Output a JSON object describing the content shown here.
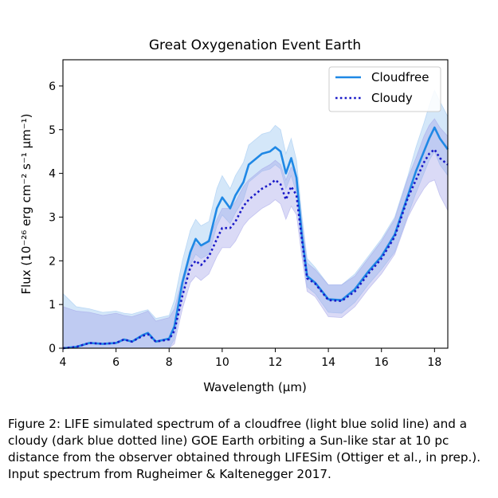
{
  "chart_data": {
    "type": "line",
    "title": "Great Oxygenation Event Earth",
    "xlabel": "Wavelength (μm)",
    "ylabel": "Flux (10⁻²⁶ erg cm⁻² s⁻¹ μm⁻¹)",
    "xlim": [
      4,
      18.5
    ],
    "ylim": [
      0,
      6.6
    ],
    "xticks": [
      4,
      6,
      8,
      10,
      12,
      14,
      16,
      18
    ],
    "yticks": [
      0,
      1,
      2,
      3,
      4,
      5,
      6
    ],
    "grid": false,
    "legend_position": "upper-right",
    "x": [
      4.0,
      4.5,
      5.0,
      5.5,
      6.0,
      6.3,
      6.6,
      7.0,
      7.2,
      7.5,
      8.0,
      8.2,
      8.5,
      8.8,
      9.0,
      9.2,
      9.5,
      9.8,
      10.0,
      10.3,
      10.5,
      10.8,
      11.0,
      11.3,
      11.5,
      11.8,
      12.0,
      12.2,
      12.4,
      12.6,
      12.8,
      13.0,
      13.2,
      13.5,
      14.0,
      14.5,
      15.0,
      15.5,
      16.0,
      16.5,
      17.0,
      17.3,
      17.6,
      17.8,
      18.0,
      18.2,
      18.5
    ],
    "series": [
      {
        "name": "Cloudfree",
        "color": "#1f88e5",
        "style": "solid",
        "values": [
          0.0,
          0.03,
          0.12,
          0.1,
          0.12,
          0.2,
          0.15,
          0.3,
          0.35,
          0.15,
          0.22,
          0.5,
          1.5,
          2.2,
          2.5,
          2.35,
          2.45,
          3.2,
          3.45,
          3.2,
          3.5,
          3.8,
          4.2,
          4.35,
          4.45,
          4.5,
          4.6,
          4.5,
          4.0,
          4.35,
          3.9,
          2.6,
          1.65,
          1.5,
          1.12,
          1.1,
          1.35,
          1.75,
          2.1,
          2.6,
          3.5,
          4.05,
          4.5,
          4.8,
          5.05,
          4.8,
          4.55
        ]
      },
      {
        "name": "Cloudy",
        "color": "#1a1ac8",
        "style": "dotted",
        "values": [
          0.0,
          0.03,
          0.12,
          0.1,
          0.12,
          0.2,
          0.15,
          0.28,
          0.32,
          0.15,
          0.2,
          0.4,
          1.2,
          1.85,
          2.0,
          1.9,
          2.1,
          2.5,
          2.75,
          2.75,
          2.9,
          3.25,
          3.4,
          3.55,
          3.65,
          3.75,
          3.85,
          3.75,
          3.4,
          3.7,
          3.5,
          2.5,
          1.6,
          1.48,
          1.1,
          1.08,
          1.3,
          1.7,
          2.05,
          2.55,
          3.45,
          3.85,
          4.25,
          4.45,
          4.55,
          4.35,
          4.2
        ]
      }
    ],
    "bands": [
      {
        "series": "Cloudfree",
        "color": "#8fbff0",
        "lower": [
          0.0,
          0.0,
          0.0,
          0.0,
          0.0,
          0.0,
          0.0,
          0.0,
          0.0,
          0.0,
          0.0,
          0.2,
          1.2,
          1.9,
          2.15,
          2.05,
          2.15,
          2.8,
          3.05,
          2.85,
          3.1,
          3.4,
          3.8,
          3.95,
          4.05,
          4.1,
          4.2,
          4.1,
          3.65,
          3.95,
          3.55,
          2.25,
          1.4,
          1.25,
          0.82,
          0.8,
          1.05,
          1.45,
          1.8,
          2.2,
          3.05,
          3.55,
          4.0,
          4.3,
          4.5,
          4.2,
          3.95
        ],
        "upper": [
          1.25,
          0.95,
          0.9,
          0.82,
          0.85,
          0.8,
          0.78,
          0.85,
          0.88,
          0.68,
          0.75,
          1.1,
          2.0,
          2.7,
          2.95,
          2.8,
          2.9,
          3.65,
          3.95,
          3.65,
          3.95,
          4.25,
          4.65,
          4.8,
          4.9,
          4.95,
          5.1,
          5.0,
          4.45,
          4.8,
          4.3,
          3.05,
          2.05,
          1.85,
          1.45,
          1.45,
          1.7,
          2.1,
          2.5,
          3.0,
          3.95,
          4.6,
          5.15,
          5.55,
          5.9,
          5.65,
          5.3
        ]
      },
      {
        "series": "Cloudy",
        "color": "#9d9de8",
        "lower": [
          0.0,
          0.0,
          0.0,
          0.0,
          0.0,
          0.0,
          0.0,
          0.0,
          0.0,
          0.0,
          0.0,
          0.1,
          0.9,
          1.5,
          1.65,
          1.55,
          1.7,
          2.1,
          2.3,
          2.3,
          2.45,
          2.8,
          2.95,
          3.1,
          3.2,
          3.3,
          3.4,
          3.3,
          2.95,
          3.25,
          3.05,
          2.1,
          1.3,
          1.18,
          0.72,
          0.7,
          0.95,
          1.35,
          1.7,
          2.15,
          3.0,
          3.35,
          3.65,
          3.8,
          3.85,
          3.5,
          3.15
        ],
        "upper": [
          0.95,
          0.85,
          0.82,
          0.75,
          0.8,
          0.75,
          0.72,
          0.8,
          0.85,
          0.62,
          0.7,
          0.9,
          1.6,
          2.25,
          2.4,
          2.3,
          2.5,
          2.95,
          3.2,
          3.2,
          3.35,
          3.7,
          3.85,
          4.0,
          4.1,
          4.2,
          4.3,
          4.2,
          3.85,
          4.15,
          3.95,
          2.9,
          1.95,
          1.8,
          1.45,
          1.45,
          1.65,
          2.05,
          2.45,
          2.95,
          3.9,
          4.35,
          4.85,
          5.1,
          5.25,
          5.05,
          4.85
        ]
      }
    ]
  },
  "caption": "Figure 2: LIFE simulated spectrum of a cloudfree (light blue solid line) and a cloudy (dark blue dotted line) GOE Earth orbiting a Sun-like star at 10 pc distance from the observer obtained through LIFESim (Ottiger et al., in prep.). Input spectrum from Rugheimer & Kaltenegger 2017."
}
